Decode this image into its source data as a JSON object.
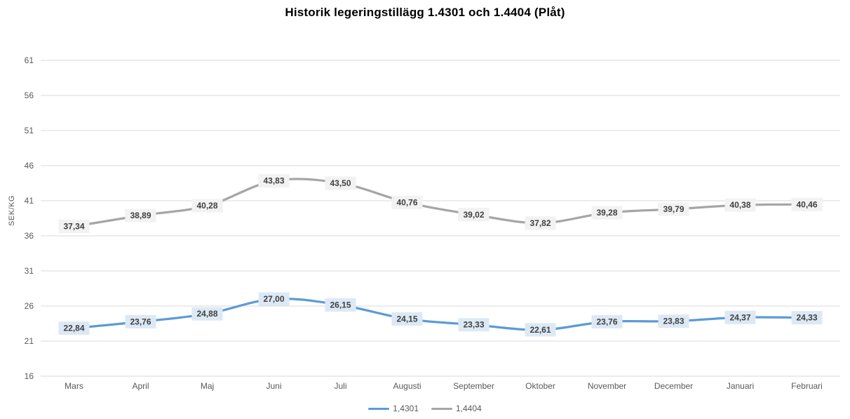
{
  "title": "Historik legeringstillägg 1.4301 och 1.4404 (Plåt)",
  "chart_data": {
    "type": "line",
    "title": "Historik legeringstillägg 1.4301 och 1.4404 (Plåt)",
    "xlabel": "",
    "ylabel": "SEK/KG",
    "ylim": [
      16,
      61
    ],
    "yticks": [
      16,
      21,
      26,
      31,
      36,
      41,
      46,
      51,
      56,
      61
    ],
    "grid": true,
    "smooth_lines": true,
    "legend_position": "bottom",
    "categories": [
      "Mars",
      "April",
      "Maj",
      "Juni",
      "Juli",
      "Augusti",
      "September",
      "Oktober",
      "November",
      "December",
      "Januari",
      "Februari"
    ],
    "series": [
      {
        "name": "1,4301",
        "color": "#5B9BD5",
        "label_bg": "#DCE9F5",
        "values": [
          22.84,
          23.76,
          24.88,
          27.0,
          26.15,
          24.15,
          23.33,
          22.61,
          23.76,
          23.83,
          24.37,
          24.33
        ],
        "labels": [
          "22,84",
          "23,76",
          "24,88",
          "27,00",
          "26,15",
          "24,15",
          "23,33",
          "22,61",
          "23,76",
          "23,83",
          "24,37",
          "24,33"
        ]
      },
      {
        "name": "1,4404",
        "color": "#A6A6A6",
        "label_bg": "#F2F2F2",
        "values": [
          37.34,
          38.89,
          40.28,
          43.83,
          43.5,
          40.76,
          39.02,
          37.82,
          39.28,
          39.79,
          40.38,
          40.46
        ],
        "labels": [
          "37,34",
          "38,89",
          "40,28",
          "43,83",
          "43,50",
          "40,76",
          "39,02",
          "37,82",
          "39,28",
          "39,79",
          "40,38",
          "40,46"
        ]
      }
    ],
    "style": {
      "gridline_color": "#D9D9D9",
      "axis_text_color": "#595959",
      "data_label_color": "#404040"
    }
  }
}
